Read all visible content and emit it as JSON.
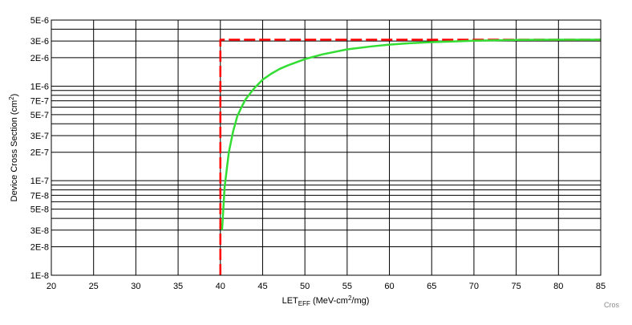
{
  "chart_data": {
    "type": "line",
    "xlabel_main": "LET",
    "xlabel_sub": "EFF",
    "xlabel_rest": " (MeV-cm",
    "xlabel_sup": "2",
    "xlabel_end": "/mg)",
    "ylabel_main": "Device Cross Section (cm",
    "ylabel_sup": "2",
    "ylabel_end": ")",
    "xlim": [
      20,
      85
    ],
    "ylim": [
      1e-08,
      5e-06
    ],
    "yscale": "log",
    "grid": true,
    "x_ticks": [
      "20",
      "25",
      "30",
      "35",
      "40",
      "45",
      "50",
      "55",
      "60",
      "65",
      "70",
      "75",
      "80",
      "85"
    ],
    "y_ticks": [
      {
        "value": 1e-08,
        "label": "1E-8"
      },
      {
        "value": 2e-08,
        "label": "2E-8"
      },
      {
        "value": 3e-08,
        "label": "3E-8"
      },
      {
        "value": 5e-08,
        "label": "5E-8"
      },
      {
        "value": 7e-08,
        "label": "7E-8"
      },
      {
        "value": 1e-07,
        "label": "1E-7"
      },
      {
        "value": 2e-07,
        "label": "2E-7"
      },
      {
        "value": 3e-07,
        "label": "3E-7"
      },
      {
        "value": 5e-07,
        "label": "5E-7"
      },
      {
        "value": 7e-07,
        "label": "7E-7"
      },
      {
        "value": 1e-06,
        "label": "1E-6"
      },
      {
        "value": 2e-06,
        "label": "2E-6"
      },
      {
        "value": 3e-06,
        "label": "3E-6"
      },
      {
        "value": 5e-06,
        "label": "5E-6"
      }
    ],
    "y_minor_gridlines": [
      4e-08,
      6e-08,
      8e-08,
      9e-08,
      4e-07,
      6e-07,
      8e-07,
      9e-07,
      4e-06
    ],
    "series": [
      {
        "color": "#ff0000",
        "style": "dashed",
        "x": [
          40,
          40,
          85
        ],
        "y": [
          1e-08,
          3.1e-06,
          3.1e-06
        ]
      },
      {
        "color": "#33dd33",
        "style": "solid",
        "x": [
          40.2,
          40.5,
          41,
          41.5,
          42,
          42.5,
          43,
          44,
          45,
          46,
          47,
          48,
          50,
          52,
          55,
          58,
          60,
          62,
          65,
          68,
          70,
          75,
          80,
          85
        ],
        "y": [
          3e-08,
          8.5e-08,
          2e-07,
          3.3e-07,
          4.8e-07,
          6e-07,
          7.3e-07,
          9.5e-07,
          1.17e-06,
          1.35e-06,
          1.52e-06,
          1.66e-06,
          1.93e-06,
          2.16e-06,
          2.45e-06,
          2.64e-06,
          2.75e-06,
          2.83e-06,
          2.92e-06,
          2.98e-06,
          3.02e-06,
          3.08e-06,
          3.1e-06,
          3.1e-06
        ]
      }
    ]
  },
  "watermark": "Cros"
}
